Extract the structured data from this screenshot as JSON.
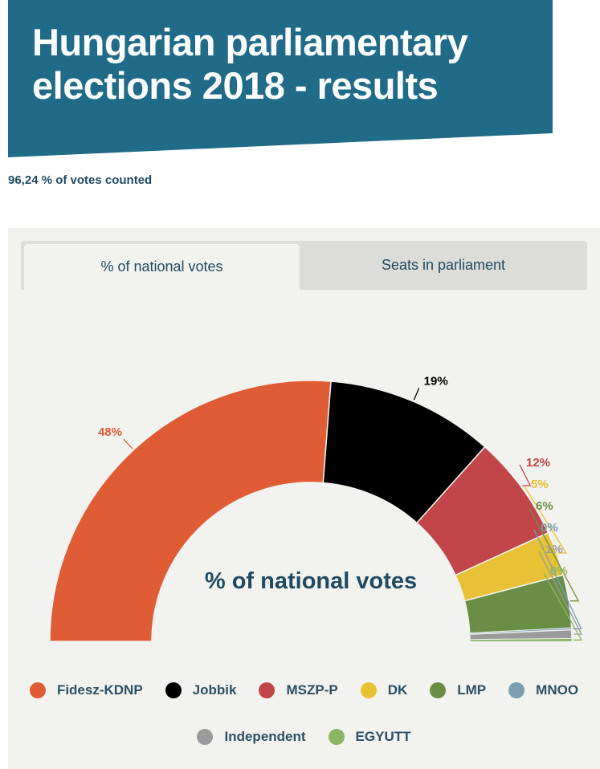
{
  "header": {
    "title_line1": "Hungarian parliamentary",
    "title_line2": "elections 2018 - results",
    "banner_color": "#1f6b88"
  },
  "votes_counted": "96,24 % of votes counted",
  "tabs": [
    {
      "label": "% of national votes",
      "active": true
    },
    {
      "label": "Seats in parliament",
      "active": false
    }
  ],
  "chart_data": {
    "type": "pie",
    "subtype": "semi-donut",
    "center_label": "% of national votes",
    "series": [
      {
        "name": "Fidesz-KDNP",
        "value": 48,
        "label": "48%",
        "color": "#e05c35"
      },
      {
        "name": "Jobbik",
        "value": 19,
        "label": "19%",
        "color": "#000000"
      },
      {
        "name": "MSZP-P",
        "value": 12,
        "label": "12%",
        "color": "#c24649"
      },
      {
        "name": "DK",
        "value": 5,
        "label": "5%",
        "color": "#e8c234"
      },
      {
        "name": "LMP",
        "value": 6,
        "label": "6%",
        "color": "#6b8e46"
      },
      {
        "name": "MNOO",
        "value": 0.2,
        "label": "0%",
        "color": "#7b9eb3"
      },
      {
        "name": "Independent",
        "value": 1,
        "label": "1%",
        "color": "#9b9b9b"
      },
      {
        "name": "EGYUTT",
        "value": 0.3,
        "label": "0%",
        "color": "#8ab563"
      }
    ],
    "legend_position": "bottom"
  }
}
